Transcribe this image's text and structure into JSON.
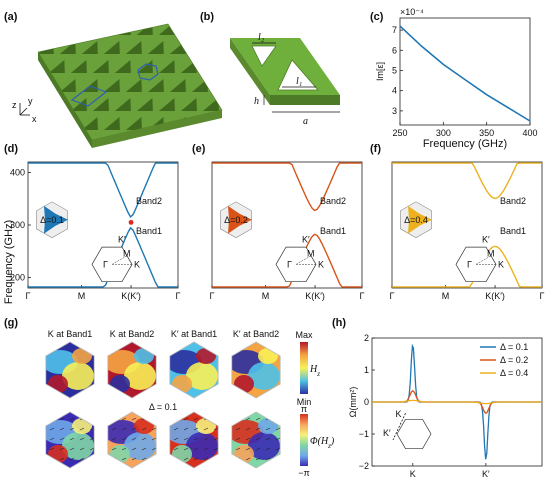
{
  "panels": {
    "a": "(a)",
    "b": "(b)",
    "c": "(c)",
    "d": "(d)",
    "e": "(e)",
    "f": "(f)",
    "g": "(g)",
    "h": "(h)"
  },
  "colors": {
    "green": "#6aa13a",
    "greenDark": "#4d7a26",
    "blue": "#1f77b4",
    "orange": "#d95319",
    "yellow": "#edb120",
    "red": "#e0261d"
  },
  "panel_a": {
    "axis_z": "z",
    "axis_y": "y",
    "axis_x": "x"
  },
  "panel_b": {
    "l2": "l₂",
    "l1": "l₁",
    "h": "h",
    "a": "a"
  },
  "panel_c": {
    "chart_data": {
      "type": "line",
      "ylabel": "Im[ε]",
      "xlabel": "Frequency (GHz)",
      "multiplier": "×10⁻⁴",
      "xlim": [
        250,
        400
      ],
      "ylim": [
        2.3,
        7.6
      ],
      "x_ticks": [
        "250",
        "300",
        "350",
        "400"
      ],
      "y_ticks": [
        "3",
        "4",
        "5",
        "6",
        "7"
      ],
      "series": [
        {
          "x": [
            250,
            275,
            300,
            325,
            350,
            375,
            400
          ],
          "y": [
            7.2,
            6.2,
            5.3,
            4.55,
            3.8,
            3.15,
            2.5
          ]
        }
      ]
    }
  },
  "bands": {
    "ylabel": "Frequency (GHz)",
    "y_ticks": [
      "200",
      "300",
      "400"
    ],
    "x_ticks": [
      "Γ",
      "M",
      "K(K′)",
      "Γ"
    ],
    "band1": "Band1",
    "band2": "Band2",
    "bz_labels": {
      "K": "K",
      "Kp": "K′",
      "M": "M",
      "G": "Γ"
    },
    "panels": [
      {
        "delta_label": "Δ=0.1",
        "gap": 0.05
      },
      {
        "delta_label": "Δ=0.2",
        "gap": 0.3
      },
      {
        "delta_label": "Δ=0.4",
        "gap": 0.75
      }
    ]
  },
  "panel_g": {
    "titles": [
      "K at Band1",
      "K at Band2",
      "K′ at Band1",
      "K′ at Band2"
    ],
    "delta": "Δ = 0.1",
    "cbar1_max": "Max",
    "cbar1_min": "Min",
    "cbar1_label": "H",
    "cbar1_sub": "z",
    "cbar2_max": "π",
    "cbar2_min": "−π",
    "cbar2_label": "Φ(H",
    "cbar2_sub": "z",
    "cbar2_close": ")"
  },
  "panel_h": {
    "chart_data": {
      "type": "line",
      "ylabel": "Ω(mm²)",
      "x_ticks": [
        "K",
        "K′"
      ],
      "y_ticks": [
        "−2",
        "−1",
        "0",
        "1",
        "2"
      ],
      "ylim": [
        -2,
        2
      ],
      "legend_position": "top-right",
      "series": [
        {
          "name": "Δ = 0.1",
          "peak_K": 1.8,
          "peak_Kp": -1.8
        },
        {
          "name": "Δ = 0.2",
          "peak_K": 0.35,
          "peak_Kp": -0.35
        },
        {
          "name": "Δ = 0.4",
          "peak_K": 0.05,
          "peak_Kp": -0.05
        }
      ]
    },
    "bz_K": "K",
    "bz_Kp": "K′"
  }
}
